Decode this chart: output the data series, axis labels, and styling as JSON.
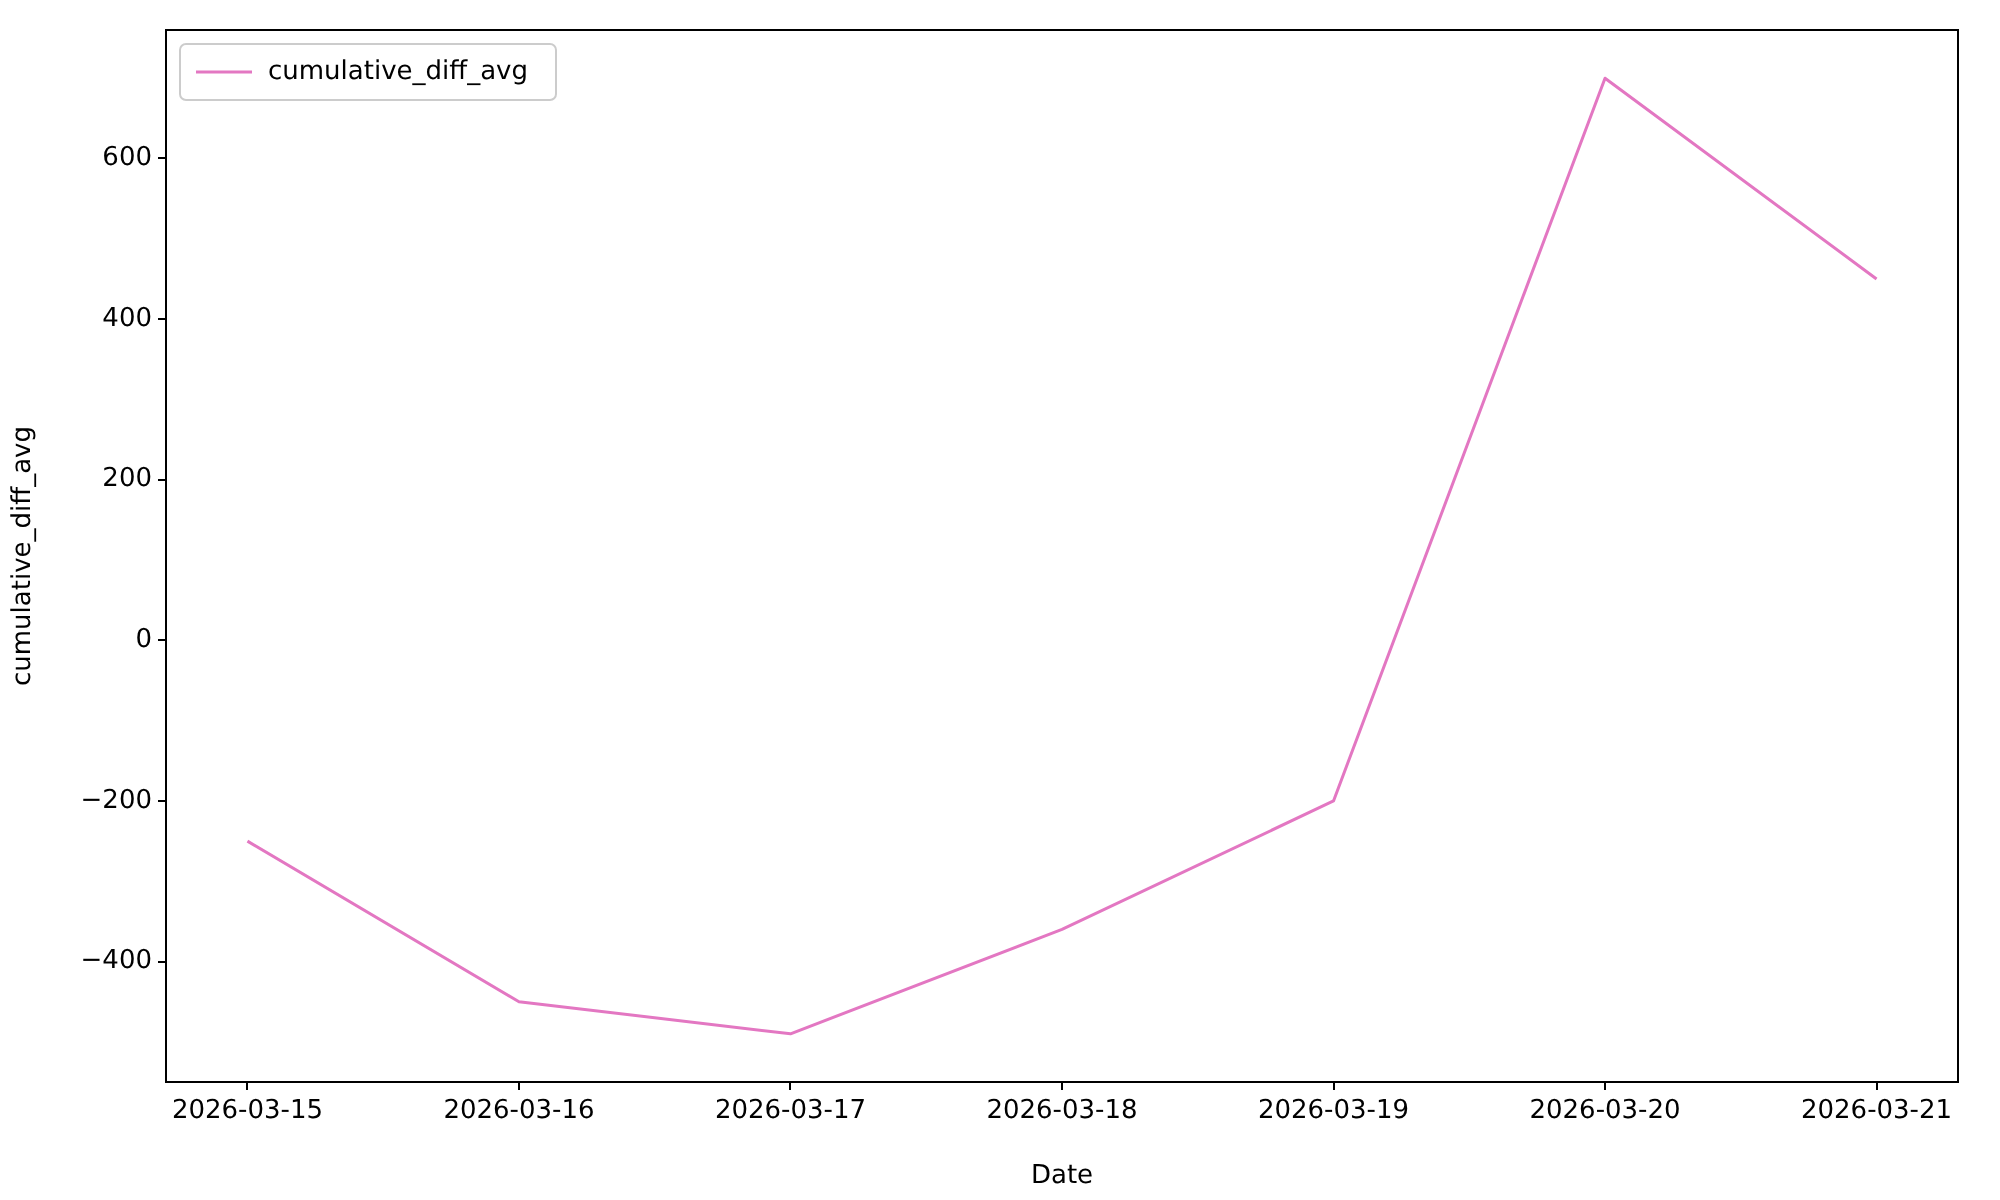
{
  "chart_data": {
    "type": "line",
    "xlabel": "Date",
    "ylabel": "cumulative_diff_avg",
    "x": [
      "2026-03-15",
      "2026-03-16",
      "2026-03-17",
      "2026-03-18",
      "2026-03-19",
      "2026-03-20",
      "2026-03-21"
    ],
    "series": [
      {
        "name": "cumulative_diff_avg",
        "color": "#e377c2",
        "values": [
          -250,
          -450,
          -490,
          -360,
          -200,
          700,
          450
        ]
      }
    ],
    "xlim": [
      "2026-03-14T16:48",
      "2026-03-21T07:12"
    ],
    "xticks": [
      "2026-03-15",
      "2026-03-16",
      "2026-03-17",
      "2026-03-18",
      "2026-03-19",
      "2026-03-20",
      "2026-03-21"
    ],
    "ylim": [
      -550,
      760
    ],
    "yticks": [
      -400,
      -200,
      0,
      200,
      400,
      600
    ],
    "grid": false,
    "legend": "top left",
    "marker": "none",
    "line_style": "solid"
  }
}
